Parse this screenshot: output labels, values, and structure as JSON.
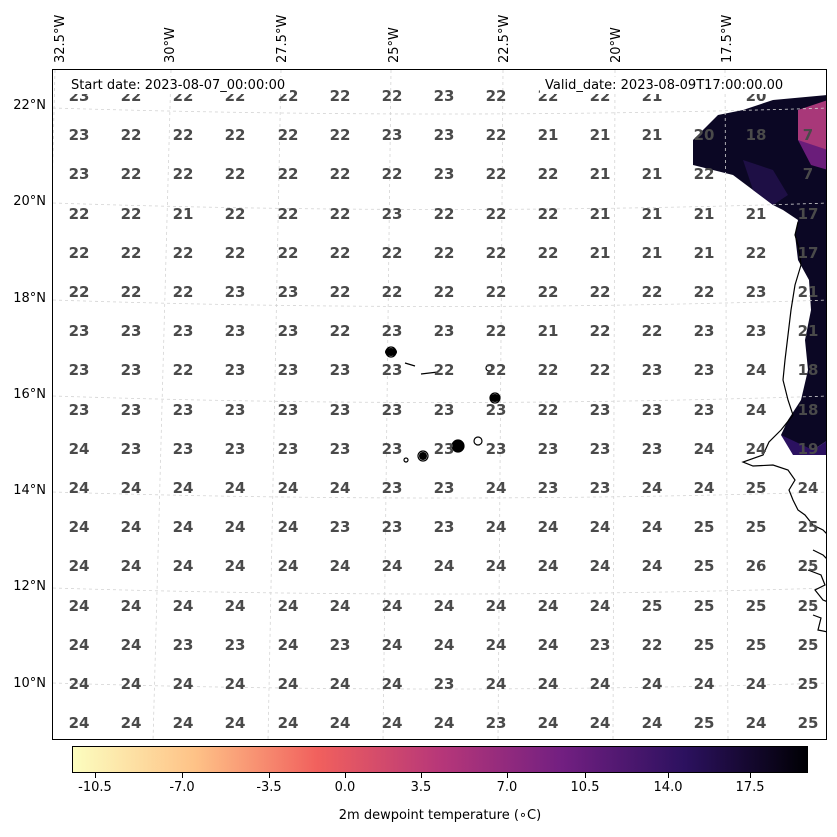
{
  "header": {
    "start_date": "Start date: 2023-08-07_00:00:00",
    "valid_date": "Valid_date: 2023-08-09T17:00:00.00"
  },
  "lon_labels": [
    "32.5°W",
    "30°W",
    "27.5°W",
    "25°W",
    "22.5°W",
    "20°W",
    "17.5°W"
  ],
  "lat_labels": [
    "22°N",
    "20°N",
    "18°N",
    "16°N",
    "14°N",
    "12°N",
    "10°N"
  ],
  "grid_values": [
    [
      "23",
      "22",
      "22",
      "22",
      "22",
      "22",
      "22",
      "23",
      "22",
      "22",
      "22",
      "21",
      "",
      "20"
    ],
    [
      "23",
      "22",
      "22",
      "22",
      "22",
      "22",
      "23",
      "23",
      "22",
      "21",
      "21",
      "21",
      "20",
      "18",
      "7"
    ],
    [
      "23",
      "22",
      "22",
      "22",
      "22",
      "22",
      "22",
      "23",
      "22",
      "22",
      "21",
      "21",
      "22",
      "",
      "7"
    ],
    [
      "22",
      "22",
      "21",
      "22",
      "22",
      "22",
      "23",
      "22",
      "22",
      "22",
      "21",
      "21",
      "21",
      "21",
      "17"
    ],
    [
      "22",
      "22",
      "22",
      "22",
      "22",
      "22",
      "22",
      "22",
      "22",
      "22",
      "21",
      "21",
      "21",
      "22",
      "17"
    ],
    [
      "22",
      "22",
      "22",
      "23",
      "23",
      "22",
      "22",
      "22",
      "22",
      "22",
      "22",
      "22",
      "22",
      "23",
      "21"
    ],
    [
      "23",
      "23",
      "23",
      "23",
      "23",
      "22",
      "23",
      "23",
      "22",
      "21",
      "22",
      "22",
      "23",
      "23",
      "21"
    ],
    [
      "23",
      "23",
      "22",
      "23",
      "23",
      "23",
      "23",
      "22",
      "22",
      "22",
      "22",
      "23",
      "23",
      "24",
      "18"
    ],
    [
      "23",
      "23",
      "23",
      "23",
      "23",
      "23",
      "23",
      "23",
      "23",
      "22",
      "23",
      "23",
      "23",
      "24",
      "18"
    ],
    [
      "24",
      "23",
      "23",
      "23",
      "23",
      "23",
      "23",
      "23",
      "23",
      "23",
      "23",
      "23",
      "24",
      "24",
      "19"
    ],
    [
      "24",
      "24",
      "24",
      "24",
      "24",
      "24",
      "23",
      "23",
      "24",
      "23",
      "23",
      "24",
      "24",
      "25",
      "24"
    ],
    [
      "24",
      "24",
      "24",
      "24",
      "24",
      "23",
      "23",
      "23",
      "24",
      "24",
      "24",
      "24",
      "25",
      "25",
      "25"
    ],
    [
      "24",
      "24",
      "24",
      "24",
      "24",
      "24",
      "24",
      "24",
      "24",
      "24",
      "24",
      "24",
      "25",
      "26",
      "25"
    ],
    [
      "24",
      "24",
      "24",
      "24",
      "24",
      "24",
      "24",
      "24",
      "24",
      "24",
      "24",
      "25",
      "25",
      "25",
      "25"
    ],
    [
      "24",
      "24",
      "23",
      "23",
      "24",
      "23",
      "24",
      "24",
      "24",
      "24",
      "23",
      "22",
      "25",
      "25",
      "25"
    ],
    [
      "24",
      "24",
      "24",
      "24",
      "24",
      "24",
      "24",
      "23",
      "24",
      "24",
      "24",
      "24",
      "24",
      "24",
      "25"
    ],
    [
      "24",
      "24",
      "24",
      "24",
      "24",
      "24",
      "24",
      "24",
      "23",
      "24",
      "24",
      "24",
      "25",
      "24",
      "25"
    ]
  ],
  "colorbar": {
    "tick_labels": [
      "-10.5",
      "-7.0",
      "-3.5",
      "0.0",
      "3.5",
      "7.0",
      "10.5",
      "14.0",
      "17.5"
    ],
    "title": "2m dewpoint temperature (∘C)",
    "colors": [
      "#fcfdbf",
      "#fec287",
      "#f1605d",
      "#b73779",
      "#721f81",
      "#2c115f",
      "#000004"
    ]
  }
}
